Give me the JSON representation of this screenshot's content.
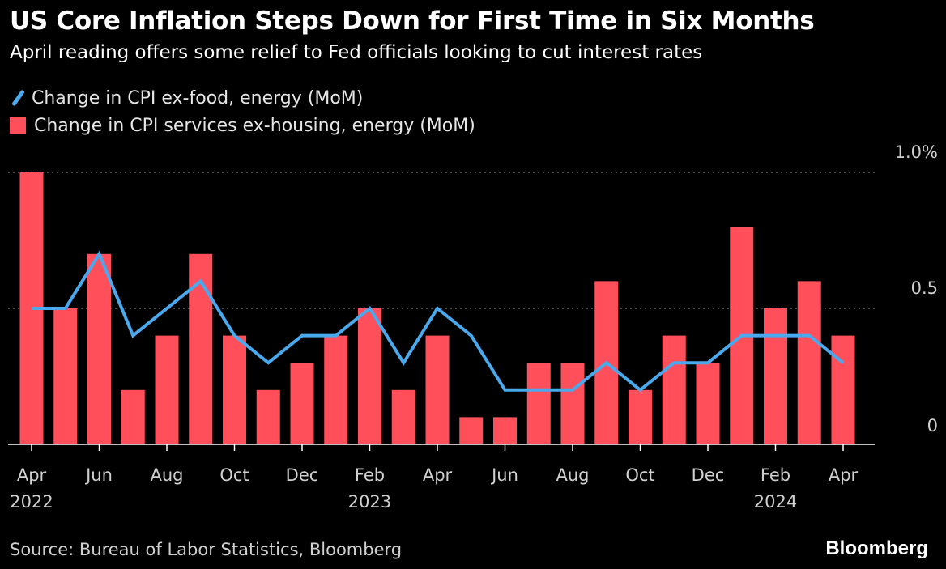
{
  "title": "US Core Inflation Steps Down for First Time in Six Months",
  "subtitle": "April reading offers some relief to Fed officials looking to cut interest rates",
  "source": "Source: Bureau of Labor Statistics, Bloomberg",
  "brand": "Bloomberg",
  "colors": {
    "background": "#000000",
    "line": "#4aa8ec",
    "bar": "#ff4f5a",
    "grid": "#777777",
    "axis_text": "#d0d0d0"
  },
  "legend": [
    {
      "name": "Change in CPI ex-food, energy (MoM)",
      "swatch": "line"
    },
    {
      "name": "Change in CPI services ex-housing, energy (MoM)",
      "swatch": "box"
    }
  ],
  "chart_data": {
    "type": "bar",
    "x": [
      "2022-04",
      "2022-05",
      "2022-06",
      "2022-07",
      "2022-08",
      "2022-09",
      "2022-10",
      "2022-11",
      "2022-12",
      "2023-01",
      "2023-02",
      "2023-03",
      "2023-04",
      "2023-05",
      "2023-06",
      "2023-07",
      "2023-08",
      "2023-09",
      "2023-10",
      "2023-11",
      "2023-12",
      "2024-01",
      "2024-02",
      "2024-03",
      "2024-04"
    ],
    "tick_labels": [
      {
        "month": "Apr",
        "year": "2022",
        "x": "2022-04"
      },
      {
        "month": "Jun",
        "x": "2022-06"
      },
      {
        "month": "Aug",
        "x": "2022-08"
      },
      {
        "month": "Oct",
        "x": "2022-10"
      },
      {
        "month": "Dec",
        "x": "2022-12"
      },
      {
        "month": "Feb",
        "year": "2023",
        "x": "2023-02"
      },
      {
        "month": "Apr",
        "x": "2023-04"
      },
      {
        "month": "Jun",
        "x": "2023-06"
      },
      {
        "month": "Aug",
        "x": "2023-08"
      },
      {
        "month": "Oct",
        "x": "2023-10"
      },
      {
        "month": "Dec",
        "x": "2023-12"
      },
      {
        "month": "Feb",
        "year": "2024",
        "x": "2024-02"
      },
      {
        "month": "Apr",
        "x": "2024-04"
      }
    ],
    "series": [
      {
        "name": "Change in CPI services ex-housing, energy (MoM)",
        "type": "bar",
        "values": [
          1.0,
          0.5,
          0.7,
          0.2,
          0.4,
          0.7,
          0.4,
          0.2,
          0.3,
          0.4,
          0.5,
          0.2,
          0.4,
          0.1,
          0.1,
          0.3,
          0.3,
          0.6,
          0.2,
          0.4,
          0.3,
          0.8,
          0.5,
          0.6,
          0.4
        ]
      },
      {
        "name": "Change in CPI ex-food, energy (MoM)",
        "type": "line",
        "values": [
          0.5,
          0.5,
          0.7,
          0.4,
          0.5,
          0.6,
          0.4,
          0.3,
          0.4,
          0.4,
          0.5,
          0.3,
          0.5,
          0.4,
          0.2,
          0.2,
          0.2,
          0.3,
          0.2,
          0.3,
          0.3,
          0.4,
          0.4,
          0.4,
          0.3
        ]
      }
    ],
    "ylim": [
      0,
      1.0
    ],
    "yticks": [
      0,
      0.5,
      1.0
    ],
    "ytick_labels": [
      "0",
      "0.5",
      "1.0%"
    ],
    "grid": true,
    "legend_position": "top-left"
  }
}
